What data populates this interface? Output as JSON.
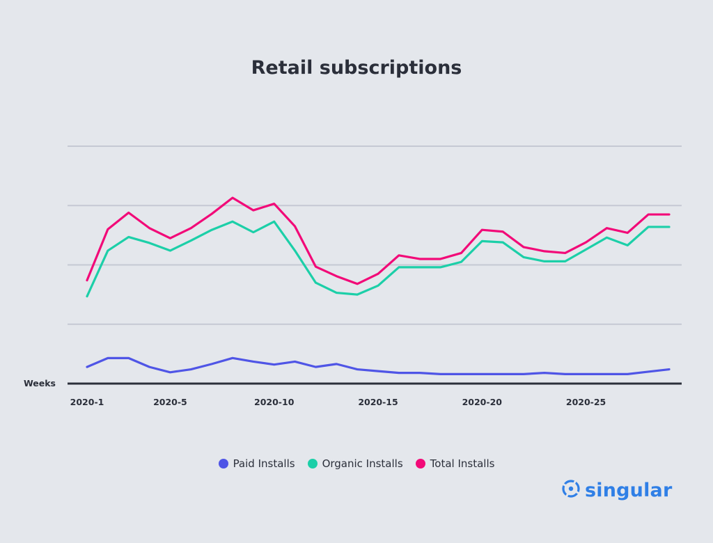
{
  "colors": {
    "paid": "#4f55e6",
    "organic": "#1ccfa8",
    "total": "#f20a78",
    "grid": "#c5c9d3",
    "axis": "#2b2f3a",
    "brand": "#2f7fe6"
  },
  "legend": {
    "paid": "Paid Installs",
    "organic": "Organic Installs",
    "total": "Total Installs"
  },
  "brand": {
    "name": "singular",
    "icon": "singular-logo-icon"
  },
  "chart_data": {
    "type": "line",
    "title": "Retail subscriptions",
    "xlabel": "Weeks",
    "ylabel": "",
    "x_tick_labels": [
      "2020-1",
      "2020-5",
      "2020-10",
      "2020-15",
      "2020-20",
      "2020-25"
    ],
    "x_tick_positions": [
      1,
      5,
      10,
      15,
      20,
      25
    ],
    "x_range": [
      1,
      29
    ],
    "ylim": [
      0,
      4
    ],
    "grid": true,
    "legend_position": "bottom",
    "x": [
      1,
      2,
      3,
      4,
      5,
      6,
      7,
      8,
      9,
      10,
      11,
      12,
      13,
      14,
      15,
      16,
      17,
      18,
      19,
      20,
      21,
      22,
      23,
      24,
      25,
      26,
      27,
      28,
      29
    ],
    "series": [
      {
        "name": "Paid Installs",
        "values": [
          0.28,
          0.43,
          0.43,
          0.28,
          0.19,
          0.24,
          0.33,
          0.43,
          0.37,
          0.32,
          0.37,
          0.28,
          0.33,
          0.24,
          0.21,
          0.18,
          0.18,
          0.16,
          0.16,
          0.16,
          0.16,
          0.16,
          0.18,
          0.16,
          0.16,
          0.16,
          0.16,
          0.2,
          0.24
        ]
      },
      {
        "name": "Organic Installs",
        "values": [
          1.47,
          2.24,
          2.47,
          2.37,
          2.24,
          2.41,
          2.59,
          2.73,
          2.55,
          2.73,
          2.24,
          1.7,
          1.53,
          1.5,
          1.65,
          1.96,
          1.96,
          1.96,
          2.05,
          2.4,
          2.38,
          2.13,
          2.06,
          2.06,
          2.26,
          2.46,
          2.33,
          2.64,
          2.64
        ]
      },
      {
        "name": "Total Installs",
        "values": [
          1.74,
          2.6,
          2.88,
          2.62,
          2.45,
          2.62,
          2.86,
          3.13,
          2.92,
          3.03,
          2.65,
          1.97,
          1.81,
          1.68,
          1.85,
          2.16,
          2.1,
          2.1,
          2.2,
          2.59,
          2.56,
          2.3,
          2.23,
          2.2,
          2.38,
          2.62,
          2.54,
          2.85,
          2.85
        ]
      }
    ]
  }
}
